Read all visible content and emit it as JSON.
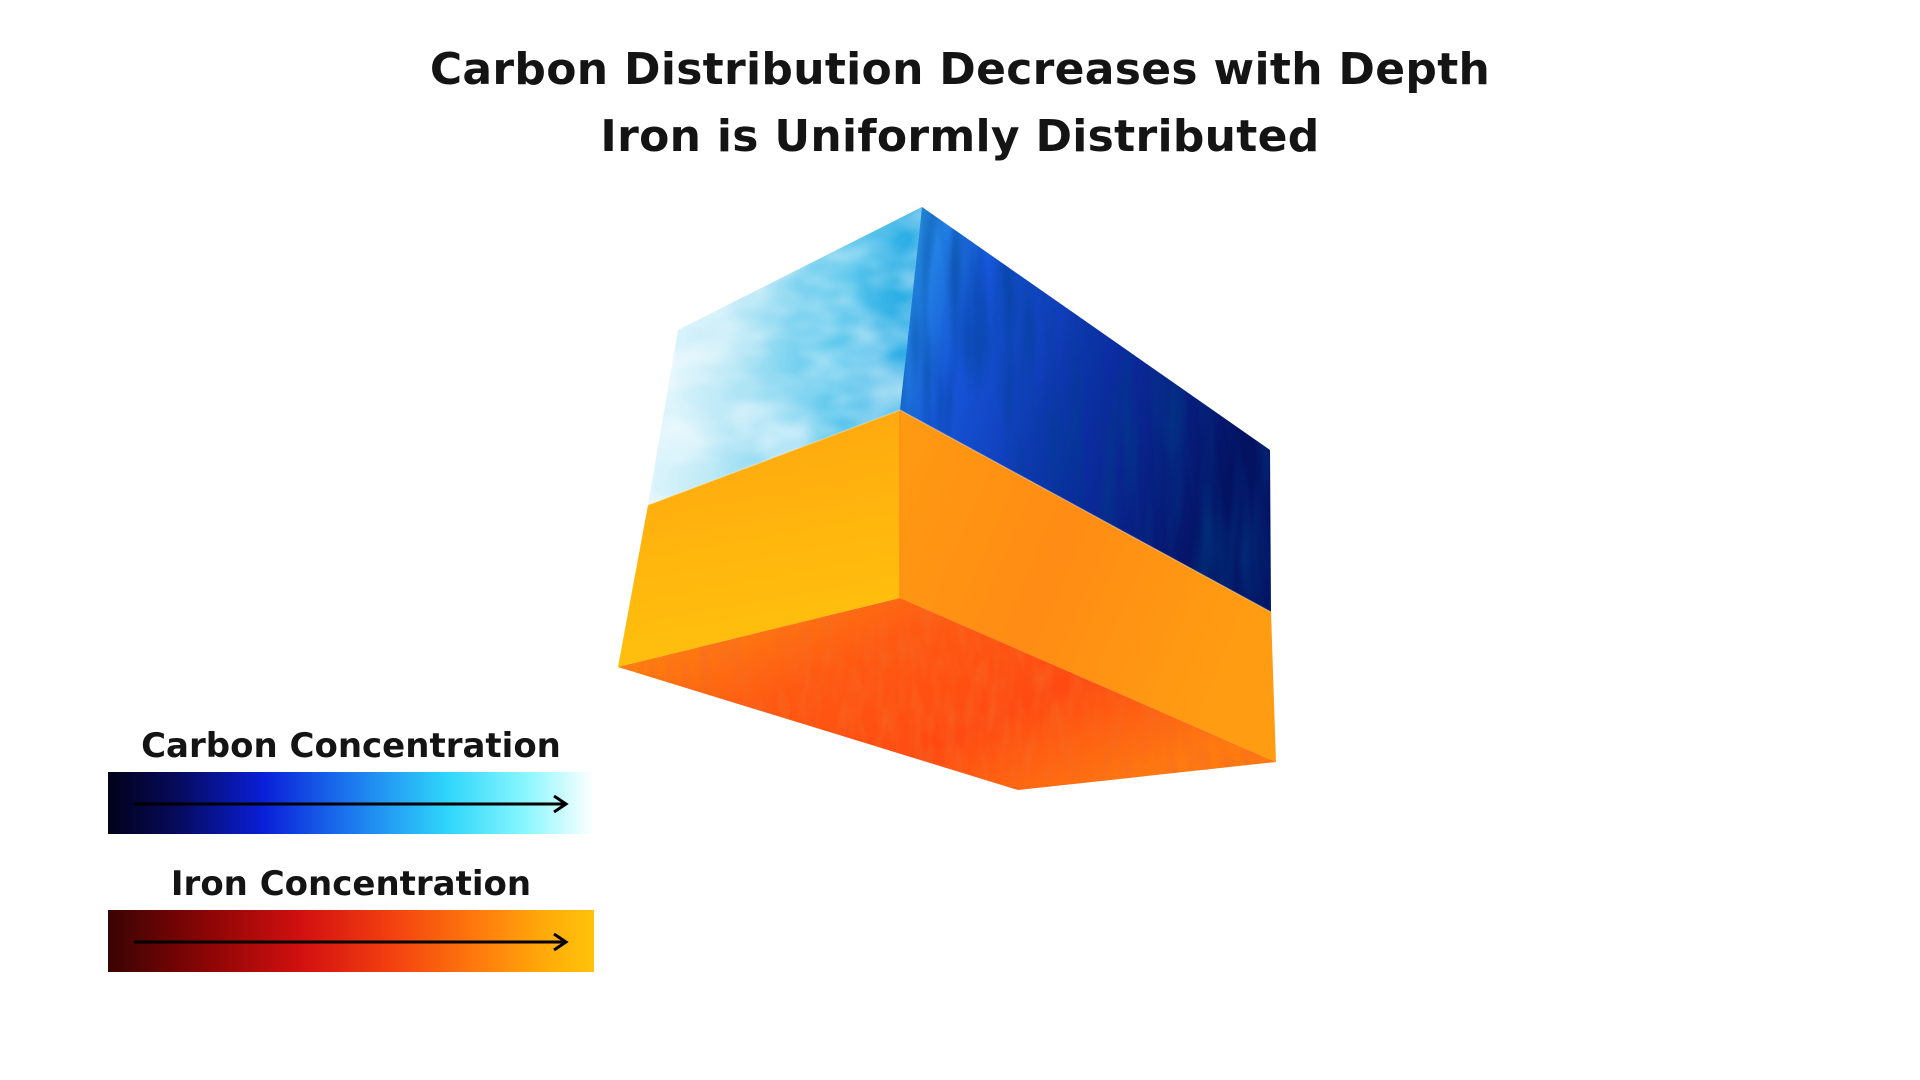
{
  "title": {
    "line1": "Carbon Distribution Decreases with Depth",
    "line2": "Iron is Uniformly Distributed"
  },
  "legend": [
    {
      "label": "Carbon Concentration",
      "gradient": [
        "#02021a",
        "#0a1fd8",
        "#2fd6fb",
        "#ffffff"
      ]
    },
    {
      "label": "Iron Concentration",
      "gradient": [
        "#3a0303",
        "#d31010",
        "#ff7a0d",
        "#ffc30a"
      ]
    }
  ],
  "colors": {
    "carbon_high": "#dff6ff",
    "carbon_low": "#040f5a",
    "iron_top": "#ffb30a",
    "iron_bottom": "#ff4a10"
  }
}
